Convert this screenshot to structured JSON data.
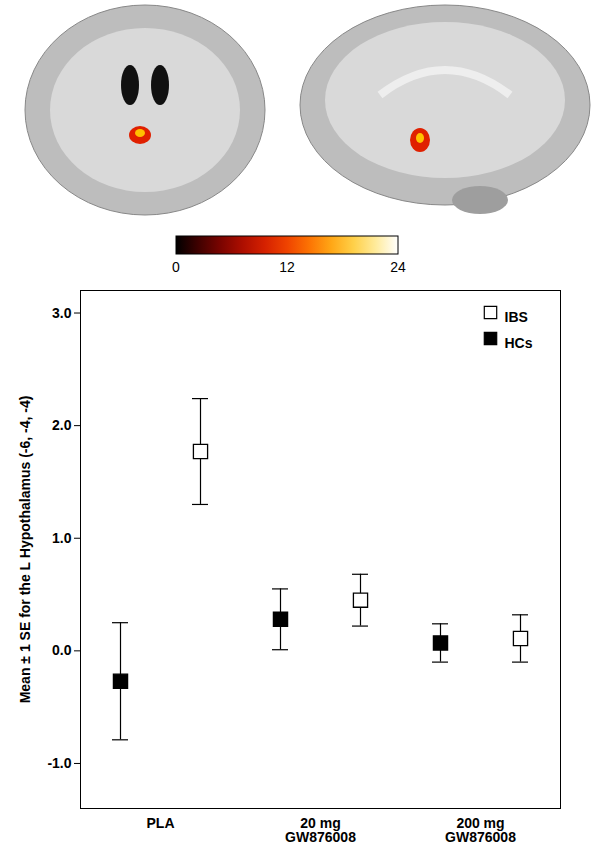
{
  "chart_data": {
    "type": "scatter",
    "y_label": "Mean ± 1 SE for the L Hypothalamus (-6, -4, -4)",
    "categories": [
      "PLA",
      "20 mg\nGW876008",
      "200 mg\nGW876008"
    ],
    "series": [
      {
        "name": "IBS",
        "color": "#ffffff",
        "marker": "square",
        "values": [
          1.77,
          0.45,
          0.11
        ],
        "errors": [
          0.47,
          0.23,
          0.21
        ]
      },
      {
        "name": "HCs",
        "color": "#000000",
        "marker": "square",
        "values": [
          -0.27,
          0.28,
          0.07
        ],
        "errors": [
          0.52,
          0.27,
          0.17
        ]
      }
    ],
    "ylim": [
      -1.4,
      3.2
    ],
    "yticks": [
      {
        "value": -1,
        "label": "-1.0"
      },
      {
        "value": 0,
        "label": "0.0"
      },
      {
        "value": 1,
        "label": "1.0"
      },
      {
        "value": 2,
        "label": "2.0"
      },
      {
        "value": 3,
        "label": "3.0"
      }
    ],
    "legend": "top-right",
    "colorbar": {
      "range": [
        0,
        24
      ],
      "ticks": [
        0,
        12,
        24
      ]
    }
  }
}
